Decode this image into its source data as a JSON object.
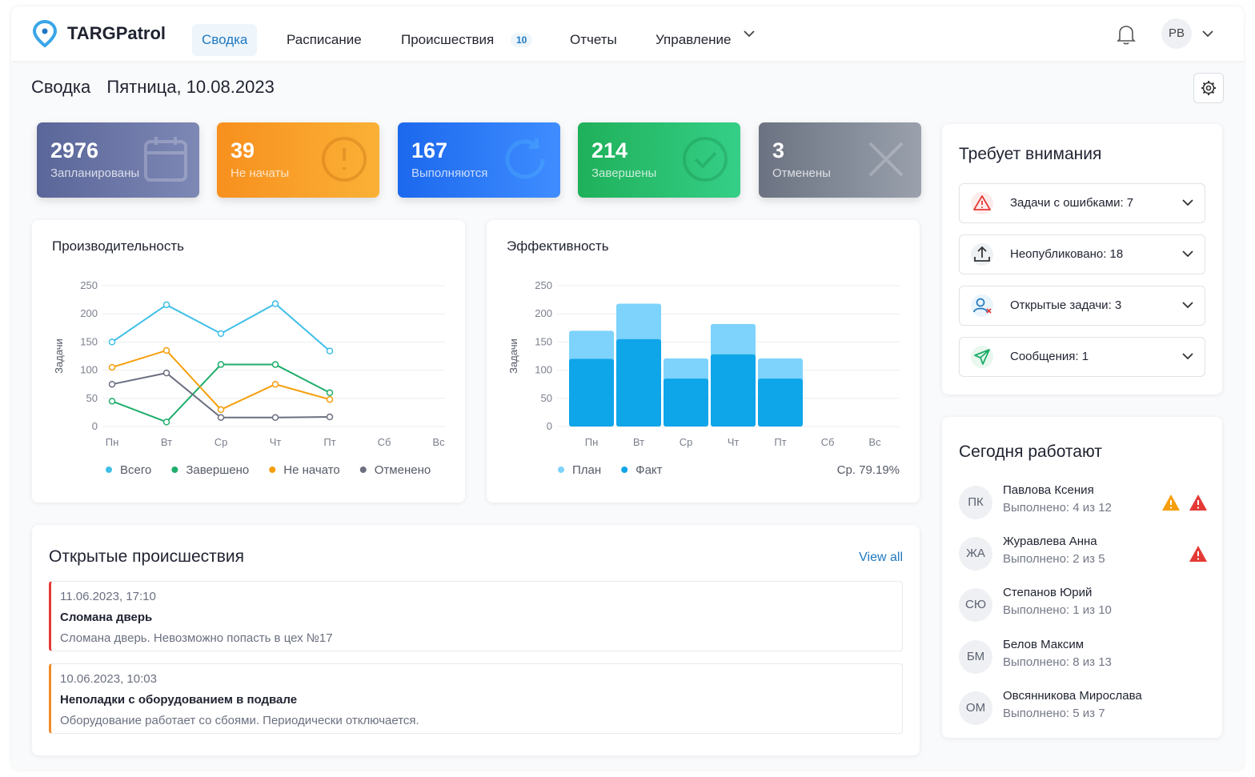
{
  "nav": {
    "brand": "TARGPatrol",
    "items": [
      "Сводка",
      "Расписание",
      "Происшествия",
      "Отчеты",
      "Управление"
    ],
    "incidents_badge": 10,
    "avatar": "РВ"
  },
  "header": {
    "title": "Сводка",
    "date": "Пятница, 10.08.2023"
  },
  "stats": [
    {
      "value": 2976,
      "label": "Запланированы"
    },
    {
      "value": 39,
      "label": "Не начаты"
    },
    {
      "value": 167,
      "label": "Выполняются"
    },
    {
      "value": 214,
      "label": "Завершены"
    },
    {
      "value": 3,
      "label": "Отменены"
    }
  ],
  "chart_data": [
    {
      "type": "line",
      "title": "Производительность",
      "y_label": "Задачи",
      "categories": [
        "Пн",
        "Вт",
        "Ср",
        "Чт",
        "Пт",
        "Сб",
        "Вс"
      ],
      "ylim": [
        0,
        250
      ],
      "yticks": [
        0,
        50,
        100,
        150,
        200,
        250
      ],
      "grid": true,
      "legend": "bottom",
      "series": [
        {
          "name": "Всего",
          "color": "#3fbfe8",
          "values": [
            150,
            216,
            165,
            218,
            134,
            null,
            null
          ]
        },
        {
          "name": "Завершено",
          "color": "#1fae6b",
          "values": [
            45,
            8,
            110,
            110,
            60,
            null,
            null
          ]
        },
        {
          "name": "Не начато",
          "color": "#f59e0b",
          "values": [
            105,
            135,
            30,
            75,
            48,
            null,
            null
          ]
        },
        {
          "name": "Отменено",
          "color": "#6b6f80",
          "values": [
            75,
            95,
            16,
            16,
            17,
            null,
            null
          ]
        }
      ]
    },
    {
      "type": "bar",
      "title": "Эффективность",
      "y_label": "Задачи",
      "categories": [
        "Пн",
        "Вт",
        "Ср",
        "Чт",
        "Пт",
        "Сб",
        "Вс"
      ],
      "ylim": [
        0,
        250
      ],
      "yticks": [
        0,
        50,
        100,
        150,
        200,
        250
      ],
      "grid": true,
      "legend": "bottom",
      "average_label": "Ср. 79.19%",
      "series": [
        {
          "name": "План",
          "color": "#7dd3fc",
          "values": [
            170,
            218,
            121,
            182,
            121,
            null,
            null
          ]
        },
        {
          "name": "Факт",
          "color": "#0ea5e9",
          "values": [
            120,
            155,
            85,
            128,
            85,
            null,
            null
          ]
        }
      ]
    }
  ],
  "attention": {
    "title": "Требует внимания",
    "items": [
      "Задачи с ошибками: 7",
      "Неопубликовано: 18",
      "Открытые задачи: 3",
      "Сообщения: 1"
    ]
  },
  "today": {
    "title": "Сегодня работают",
    "people": [
      {
        "initials": "ПК",
        "name": "Павлова Ксения",
        "progress": "Выполнено: 4 из 12"
      },
      {
        "initials": "ЖА",
        "name": "Журавлева Анна",
        "progress": "Выполнено: 2 из 5"
      },
      {
        "initials": "СЮ",
        "name": "Степанов Юрий",
        "progress": "Выполнено: 1 из 10"
      },
      {
        "initials": "БМ",
        "name": "Белов Максим",
        "progress": "Выполнено: 8 из 13"
      },
      {
        "initials": "ОМ",
        "name": "Овсянникова Мирослава",
        "progress": "Выполнено: 5 из 7"
      }
    ]
  },
  "incidents": {
    "title": "Открытые происшествия",
    "link": "View all",
    "items": [
      {
        "datetime": "11.06.2023, 17:10",
        "title": "Сломана дверь",
        "text": "Сломана дверь. Невозможно попасть в цех №17",
        "color": "#e53935"
      },
      {
        "datetime": "10.06.2023, 10:03",
        "title": "Неполадки с оборудованием в подвале",
        "text": "Оборудование работает со сбоями. Периодически отключается.",
        "color": "#f28c28"
      }
    ]
  }
}
